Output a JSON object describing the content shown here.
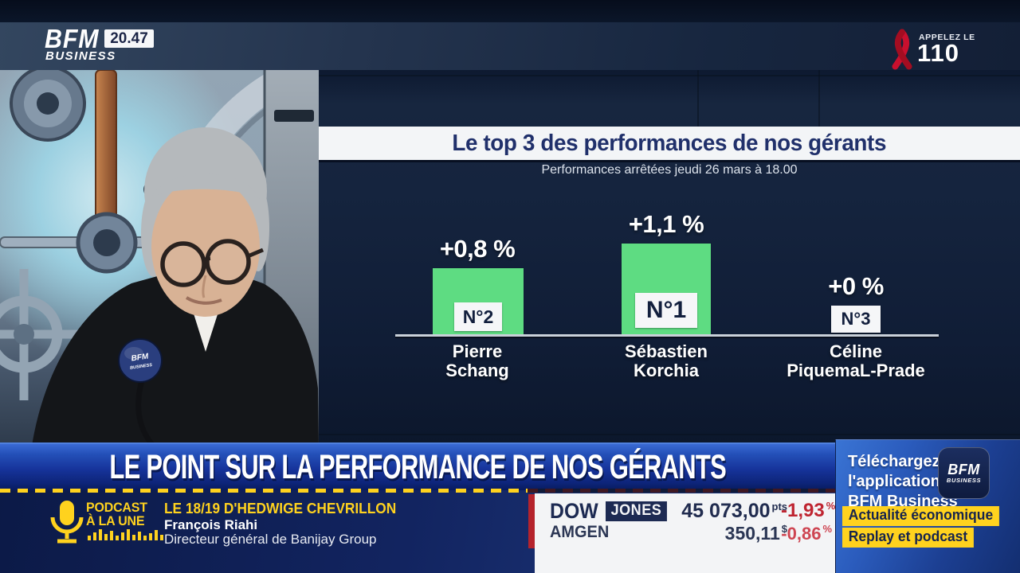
{
  "header": {
    "brand": {
      "line1": "BFM",
      "line2": "BUSINESS"
    },
    "time": "20.47",
    "campaign": {
      "label": "APPELEZ LE",
      "number": "110"
    }
  },
  "chart_data": {
    "type": "bar",
    "title": "Le top 3 des performances de nos gérants",
    "subtitle": "Performances arrêtées jeudi 26 mars à 18.00",
    "categories": [
      "Pierre Schang",
      "Sébastien Korchia",
      "Céline PiquemaL-Prade"
    ],
    "name_lines": [
      [
        "Pierre",
        "Schang"
      ],
      [
        "Sébastien",
        "Korchia"
      ],
      [
        "Céline",
        "PiquemaL-Prade"
      ]
    ],
    "values": [
      0.8,
      1.1,
      0.0
    ],
    "value_labels": [
      "+0,8 %",
      "+1,1 %",
      "+0 %"
    ],
    "rank_labels": [
      "N°2",
      "N°1",
      "N°3"
    ],
    "unit": "%",
    "bar_color": "#5edc82",
    "ylim": [
      0,
      1.2
    ],
    "grid": false,
    "legend": false
  },
  "banner": {
    "headline": "LE POINT SUR LA PERFORMANCE DE NOS GÉRANTS"
  },
  "podcast": {
    "kicker_line1": "PODCAST",
    "kicker_line2": "À LA UNE",
    "show": "LE 18/19 D'HEDWIGE CHEVRILLON",
    "guest_name": "François Riahi",
    "guest_title": "Directeur général de Banijay Group"
  },
  "ticker": {
    "rows": [
      {
        "symbol": "DOW",
        "symbol_badge": "JONES",
        "value": "45 073,00",
        "unit": "pts",
        "change_value": "-1,93",
        "change_unit": "%"
      },
      {
        "symbol": "AMGEN",
        "symbol_badge": "",
        "value": "350,11",
        "unit": "$",
        "change_value": "-0,86",
        "change_unit": "%"
      }
    ]
  },
  "promo": {
    "lines": [
      "Téléchargez",
      "l'application",
      "BFM Business"
    ],
    "app_icon": {
      "line1": "BFM",
      "line2": "BUSINESS"
    },
    "tags": [
      "Actualité économique",
      "Replay et podcast"
    ]
  },
  "studio": {
    "mic_flag": {
      "line1": "BFM",
      "line2": "BUSINESS"
    }
  },
  "colors": {
    "accent_yellow": "#ffd21e",
    "bar_green": "#5edc82",
    "negative_red": "#bf2531",
    "banner_blue": "#16339a",
    "title_navy": "#20306b",
    "ticker_navy": "#1d2a52",
    "ribbon_red": "#c8102e"
  }
}
